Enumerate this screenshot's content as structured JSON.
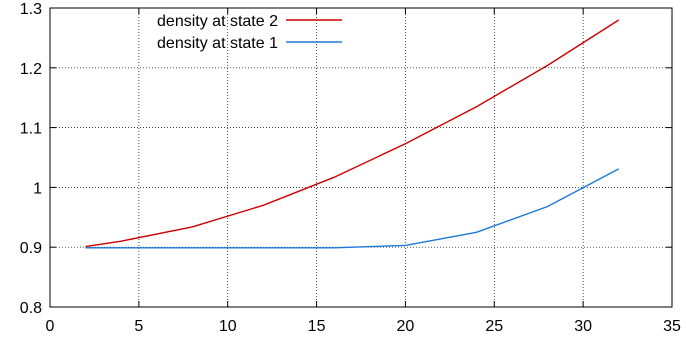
{
  "chart_data": {
    "type": "line",
    "title": "",
    "xlabel": "",
    "ylabel": "",
    "xlim": [
      0,
      35
    ],
    "ylim": [
      0.8,
      1.3
    ],
    "xticks": [
      0,
      5,
      10,
      15,
      20,
      25,
      30,
      35
    ],
    "yticks": [
      0.8,
      0.9,
      1,
      1.1,
      1.2,
      1.3
    ],
    "xtick_labels": [
      "0",
      "5",
      "10",
      "15",
      "20",
      "25",
      "30",
      "35"
    ],
    "ytick_labels": [
      "0.8",
      "0.9",
      "1",
      "1.1",
      "1.2",
      "1.3"
    ],
    "grid": true,
    "legend_position": "top-left",
    "series": [
      {
        "name": "density at state 2",
        "color": "#cc0000",
        "x": [
          2,
          4,
          8,
          12,
          16,
          20,
          24,
          28,
          32
        ],
        "y": [
          0.901,
          0.91,
          0.934,
          0.97,
          1.017,
          1.073,
          1.135,
          1.204,
          1.28
        ]
      },
      {
        "name": "density at state 1",
        "color": "#1e78d8",
        "x": [
          2,
          4,
          8,
          12,
          16,
          20,
          24,
          28,
          32
        ],
        "y": [
          0.899,
          0.899,
          0.899,
          0.899,
          0.899,
          0.903,
          0.925,
          0.968,
          1.031
        ]
      }
    ]
  }
}
